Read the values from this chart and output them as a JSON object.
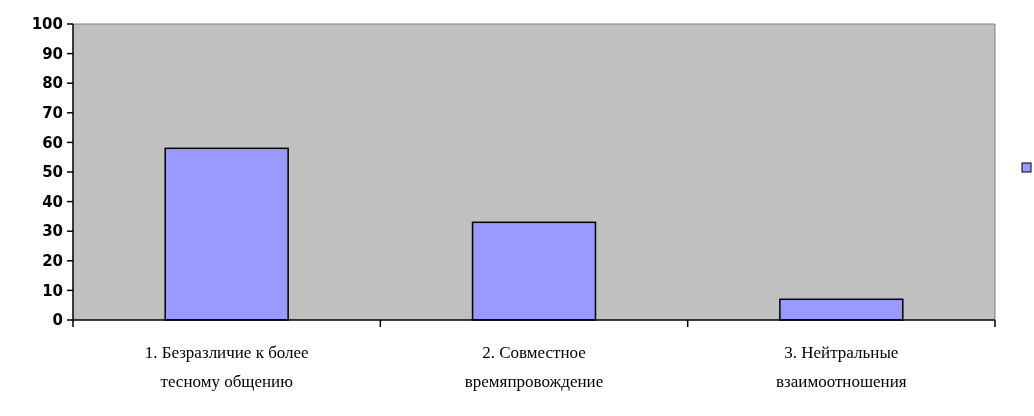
{
  "chart_data": {
    "type": "bar",
    "categories": [
      "1. Безразличие к более тесному общению",
      "2. Совместное времяпровождение",
      "3. Нейтральные взаимоотношения"
    ],
    "series": [
      {
        "color": "#9999ff",
        "values": [
          58,
          33,
          7
        ]
      }
    ],
    "ylim": [
      0,
      100
    ],
    "yticks": [
      0,
      10,
      20,
      30,
      40,
      50,
      60,
      70,
      80,
      90,
      100
    ],
    "grid": false
  }
}
